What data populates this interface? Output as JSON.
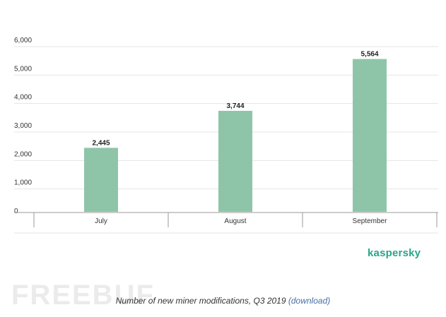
{
  "chart_data": {
    "type": "bar",
    "title": "",
    "xlabel": "",
    "ylabel": "",
    "categories": [
      "July",
      "August",
      "September"
    ],
    "values": [
      2445,
      3744,
      5564
    ],
    "value_labels": [
      "2,445",
      "3,744",
      "5,564"
    ],
    "yticks": [
      0,
      1000,
      2000,
      3000,
      4000,
      5000,
      6000
    ],
    "ytick_labels": [
      "0",
      "1,000",
      "2,000",
      "3,000",
      "4,000",
      "5,000",
      "6,000"
    ],
    "ylim": [
      0,
      6000
    ],
    "grid": true,
    "legend": "none"
  },
  "colors": {
    "bar": "#8ec5a8",
    "grid": "#e4e4e4",
    "axis": "#999999",
    "brand": "#27a689"
  },
  "brand": {
    "name": "kaspersky"
  },
  "watermark": {
    "text": "FREEBUF"
  },
  "caption": {
    "text": "Number of new miner modifications, Q3 2019",
    "link_text": "(download)"
  }
}
